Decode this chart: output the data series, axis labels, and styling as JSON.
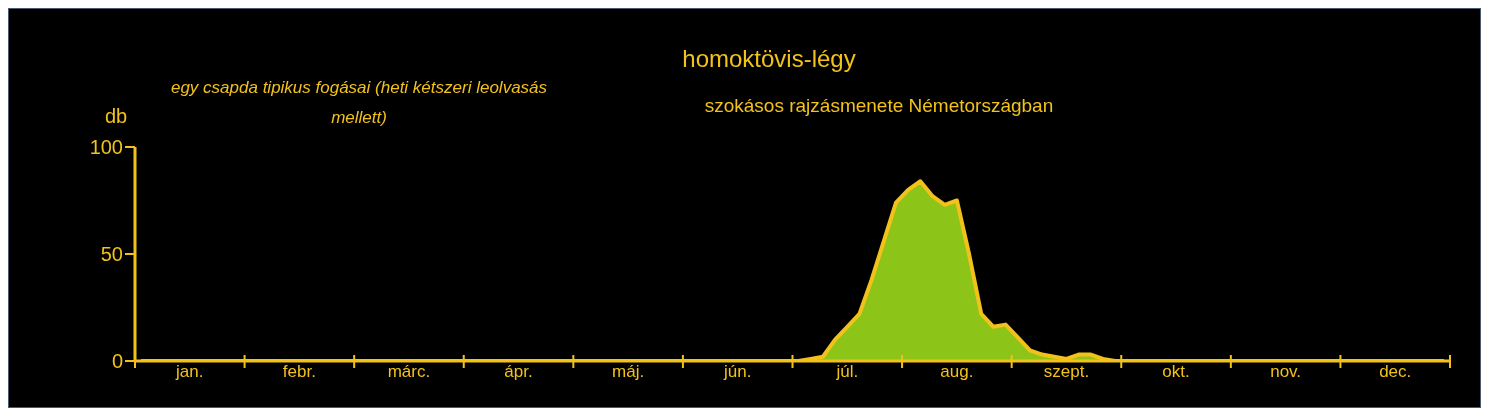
{
  "chart_data": {
    "type": "area",
    "title": "homoktövis-légy",
    "subtitle": "szokásos rajzásmenete Németországban",
    "ylabel": "db",
    "annotations": [
      "egy csapda tipikus fogásai (heti kétszeri leolvasás mellett)"
    ],
    "categories": [
      null,
      null,
      null,
      null,
      "jan.",
      null,
      null,
      null,
      null,
      null,
      null,
      null,
      null,
      "febr.",
      null,
      null,
      null,
      null,
      null,
      null,
      null,
      null,
      "márc.",
      null,
      null,
      null,
      null,
      null,
      null,
      null,
      null,
      "ápr.",
      null,
      null,
      null,
      null,
      null,
      null,
      null,
      null,
      "máj.",
      null,
      null,
      null,
      null,
      null,
      null,
      null,
      null,
      "jún.",
      null,
      null,
      null,
      null,
      null,
      null,
      null,
      null,
      "júl.",
      null,
      null,
      null,
      null,
      null,
      null,
      null,
      null,
      "aug.",
      null,
      null,
      null,
      null,
      null,
      null,
      null,
      null,
      "szept.",
      null,
      null,
      null,
      null,
      null,
      null,
      null,
      null,
      "okt.",
      null,
      null,
      null,
      null,
      null,
      null,
      null,
      null,
      "nov.",
      null,
      null,
      null,
      null,
      null,
      null,
      null,
      null,
      "dec.",
      null,
      null,
      null,
      null
    ],
    "series": [
      {
        "color": "#8cc418",
        "values": [
          0,
          0,
          0,
          0,
          0,
          0,
          0,
          0,
          0,
          0,
          0,
          0,
          0,
          0,
          0,
          0,
          0,
          0,
          0,
          0,
          0,
          0,
          0,
          0,
          0,
          0,
          0,
          0,
          0,
          0,
          0,
          0,
          0,
          0,
          0,
          0,
          0,
          0,
          0,
          0,
          0,
          0,
          0,
          0,
          0,
          0,
          0,
          0,
          0,
          0,
          0,
          0,
          0,
          0,
          0,
          1,
          2,
          10,
          16,
          22,
          38,
          56,
          74,
          80,
          84,
          77,
          73,
          75,
          50,
          22,
          16,
          17,
          11,
          5,
          3,
          2,
          1,
          3,
          3,
          1,
          0,
          0,
          0,
          0,
          0,
          0,
          0,
          0,
          0,
          0,
          0,
          0,
          0,
          0,
          0,
          0,
          0,
          0,
          0,
          0,
          0,
          0,
          0,
          0,
          0,
          0,
          0,
          0
        ]
      }
    ],
    "ylim": [
      0,
      100
    ],
    "yticks": [
      0,
      50,
      100
    ],
    "grid": false,
    "legend": false
  }
}
